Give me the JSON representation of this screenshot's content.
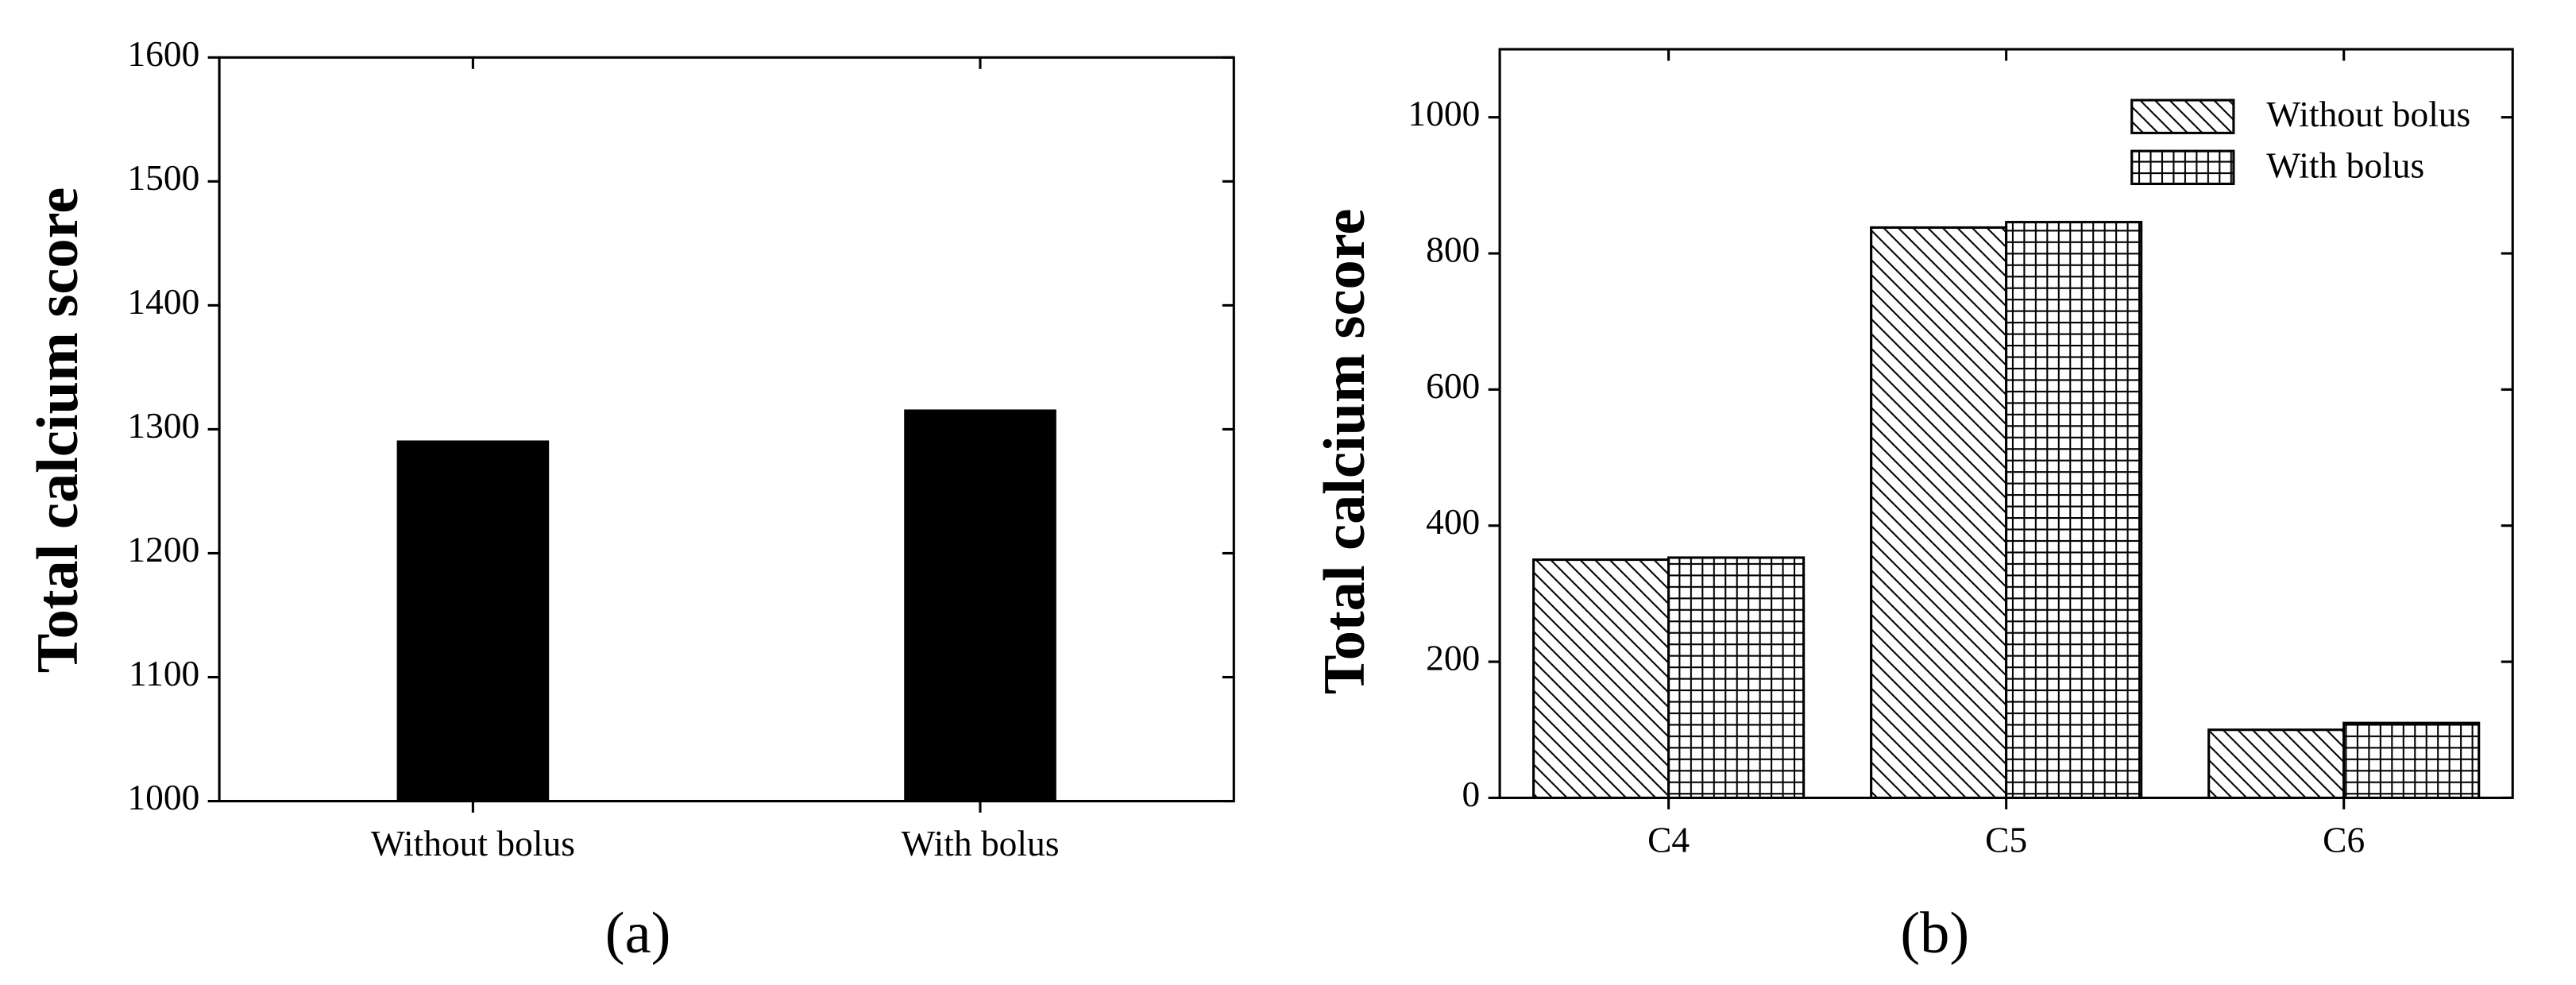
{
  "chart_data": [
    {
      "type": "bar",
      "caption": "(a)",
      "ylabel": "Total calcium score",
      "categories": [
        "Without bolus",
        "With bolus"
      ],
      "values": [
        1291,
        1316
      ],
      "color": "#000000",
      "ylim": [
        1000,
        1600
      ],
      "yticks": [
        1000,
        1100,
        1200,
        1300,
        1400,
        1500,
        1600
      ]
    },
    {
      "type": "bar",
      "caption": "(b)",
      "ylabel": "Total calcium score",
      "categories": [
        "C4",
        "C5",
        "C6"
      ],
      "series": [
        {
          "name": "Without bolus",
          "color": "#000000",
          "hatch": "diagonal",
          "values": [
            350,
            838,
            100
          ]
        },
        {
          "name": "With bolus",
          "color": "#000000",
          "hatch": "grid",
          "values": [
            353,
            846,
            110
          ]
        }
      ],
      "ylim": [
        0,
        1100
      ],
      "yticks": [
        0,
        200,
        400,
        600,
        800,
        1000
      ],
      "legend": "upper right"
    }
  ]
}
